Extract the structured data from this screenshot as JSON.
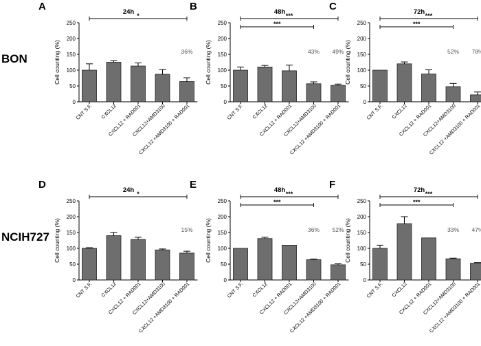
{
  "row_labels": [
    "BON",
    "NCIH727"
  ],
  "chart_data": [
    {
      "type": "bar",
      "panel": "A",
      "title": "24h",
      "ylabel": "Cell counting (%)",
      "ylim": [
        0,
        250
      ],
      "yticks": [
        0,
        50,
        100,
        150,
        200,
        250
      ],
      "categories": [
        "CNT S.F.",
        "CXCL12",
        "CXCL12 + RAD001",
        "CXCL12+AMD3100",
        "CXCL12 +AMD3100 + RAD001"
      ],
      "values": [
        100,
        125,
        113,
        87,
        64
      ],
      "errors": [
        20,
        5,
        10,
        15,
        12
      ],
      "annotations": [
        {
          "category_index": 4,
          "text": "36%"
        }
      ],
      "significance": [
        {
          "from": 0,
          "to": 4,
          "label": "*"
        }
      ]
    },
    {
      "type": "bar",
      "panel": "B",
      "title": "48h",
      "ylabel": "Cell counting (%)",
      "ylim": [
        0,
        250
      ],
      "yticks": [
        0,
        50,
        100,
        150,
        200,
        250
      ],
      "categories": [
        "CNT S.F.",
        "CXCL12",
        "CXCL12 + RAD001",
        "CXCL12+AMD3100",
        "CXCL12 +AMD3100 + RAD001"
      ],
      "values": [
        100,
        110,
        98,
        57,
        52
      ],
      "errors": [
        10,
        5,
        18,
        6,
        4
      ],
      "annotations": [
        {
          "category_index": 3,
          "text": "43%"
        },
        {
          "category_index": 4,
          "text": "49%"
        }
      ],
      "significance": [
        {
          "from": 0,
          "to": 4,
          "label": "***"
        },
        {
          "from": 0,
          "to": 3,
          "label": "***"
        }
      ]
    },
    {
      "type": "bar",
      "panel": "C",
      "title": "72h",
      "ylabel": "Cell counting (%)",
      "ylim": [
        0,
        250
      ],
      "yticks": [
        0,
        50,
        100,
        150,
        200,
        250
      ],
      "categories": [
        "CNT S.F.",
        "CXCL12",
        "CXCL12 + RAD001",
        "CXCL12+AMD3100",
        "CXCL12 +AMD3100 + RAD001"
      ],
      "values": [
        100,
        120,
        88,
        48,
        22
      ],
      "errors": [
        0,
        6,
        13,
        10,
        9
      ],
      "annotations": [
        {
          "category_index": 3,
          "text": "52%"
        },
        {
          "category_index": 4,
          "text": "78%"
        }
      ],
      "significance": [
        {
          "from": 0,
          "to": 4,
          "label": "***"
        },
        {
          "from": 0,
          "to": 3,
          "label": "***"
        }
      ]
    },
    {
      "type": "bar",
      "panel": "D",
      "title": "24h",
      "ylabel": "Cell counting (%)",
      "ylim": [
        0,
        250
      ],
      "yticks": [
        0,
        50,
        100,
        150,
        200,
        250
      ],
      "categories": [
        "CNT S.F.",
        "CXCL12",
        "CXCL12 + RAD001",
        "CXCL12+AMD3100",
        "CXCL12 +AMD3100 + RAD001"
      ],
      "values": [
        100,
        140,
        128,
        95,
        85
      ],
      "errors": [
        2,
        10,
        7,
        3,
        6
      ],
      "annotations": [
        {
          "category_index": 4,
          "text": "15%"
        }
      ],
      "significance": [
        {
          "from": 0,
          "to": 4,
          "label": "*"
        }
      ]
    },
    {
      "type": "bar",
      "panel": "E",
      "title": "48h",
      "ylabel": "Cell counting (%)",
      "ylim": [
        0,
        250
      ],
      "yticks": [
        0,
        50,
        100,
        150,
        200,
        250
      ],
      "categories": [
        "CNT S.F.",
        "CXCL12",
        "CXCL12 + RAD001",
        "CXCL12+AMD3100",
        "CXCL12 +AMD3100 + RAD001"
      ],
      "values": [
        100,
        131,
        110,
        64,
        48
      ],
      "errors": [
        0,
        4,
        0,
        2,
        3
      ],
      "annotations": [
        {
          "category_index": 3,
          "text": "36%"
        },
        {
          "category_index": 4,
          "text": "52%"
        }
      ],
      "significance": [
        {
          "from": 0,
          "to": 4,
          "label": "***"
        },
        {
          "from": 0,
          "to": 3,
          "label": "***"
        }
      ]
    },
    {
      "type": "bar",
      "panel": "F",
      "title": "72h",
      "ylabel": "Cell counting (%)",
      "ylim": [
        0,
        250
      ],
      "yticks": [
        0,
        50,
        100,
        150,
        200,
        250
      ],
      "categories": [
        "CNT S.F.",
        "CXCL12",
        "CXCL12 + RAD001",
        "CXCL12+AMD3100",
        "CXCL12 +AMD3100 + RAD001"
      ],
      "values": [
        100,
        178,
        133,
        67,
        53
      ],
      "errors": [
        10,
        22,
        0,
        2,
        2
      ],
      "annotations": [
        {
          "category_index": 3,
          "text": "33%"
        },
        {
          "category_index": 4,
          "text": "47%"
        }
      ],
      "significance": [
        {
          "from": 0,
          "to": 4,
          "label": "***"
        },
        {
          "from": 0,
          "to": 3,
          "label": "***"
        }
      ]
    }
  ]
}
